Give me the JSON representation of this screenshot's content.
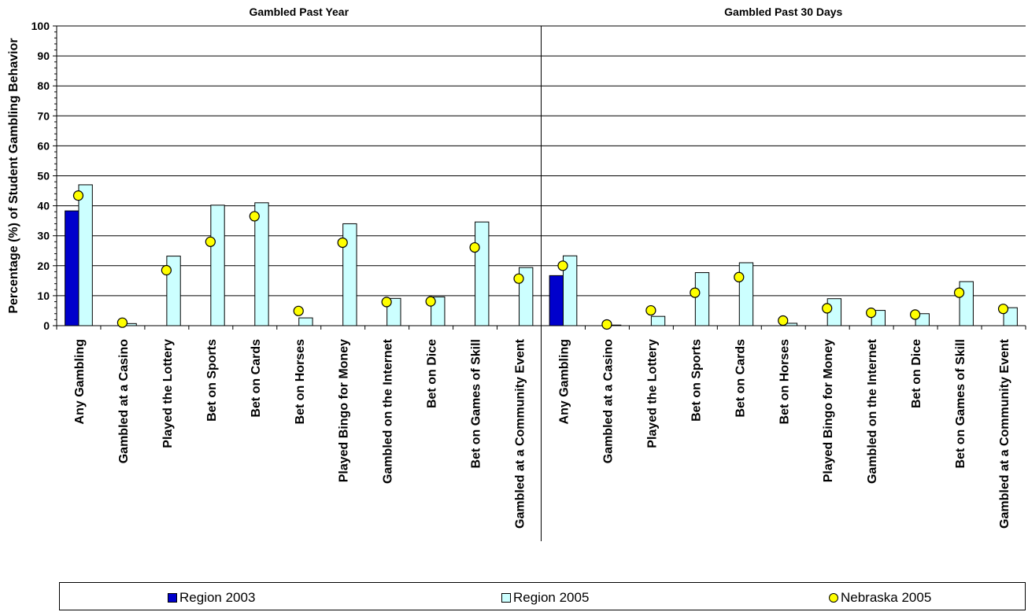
{
  "chart_data": {
    "type": "bar",
    "ylabel": "Percentage (%) of Student Gambling Behavior",
    "ylim": [
      0,
      100
    ],
    "yticks": [
      0,
      10,
      20,
      30,
      40,
      50,
      60,
      70,
      80,
      90,
      100
    ],
    "grid": true,
    "legend_position": "bottom",
    "colors": {
      "region2003": "#0000CC",
      "region2005": "#CCFFFF",
      "nebraska2005": "#FFFF00"
    },
    "categories": [
      "Any Gambling",
      "Gambled at a Casino",
      "Played the Lottery",
      "Bet on Sports",
      "Bet on Cards",
      "Bet on Horses",
      "Played Bingo for Money",
      "Gambled on the Internet",
      "Bet on Dice",
      "Bet on Games of Skill",
      "Gambled at a Community Event"
    ],
    "panels": [
      {
        "title": "Gambled Past Year",
        "series": [
          {
            "name": "Region 2003",
            "kind": "bar",
            "values": [
              38.3,
              null,
              null,
              null,
              null,
              null,
              null,
              null,
              null,
              null,
              null
            ]
          },
          {
            "name": "Region 2005",
            "kind": "bar",
            "values": [
              47.0,
              0.7,
              23.2,
              40.2,
              41.0,
              2.6,
              34.0,
              9.1,
              9.6,
              34.6,
              19.4
            ]
          },
          {
            "name": "Nebraska 2005",
            "kind": "marker",
            "values": [
              43.4,
              1.0,
              18.5,
              28.0,
              36.5,
              4.9,
              27.7,
              7.9,
              8.1,
              26.1,
              15.7
            ]
          }
        ]
      },
      {
        "title": "Gambled Past 30 Days",
        "series": [
          {
            "name": "Region 2003",
            "kind": "bar",
            "values": [
              16.7,
              null,
              null,
              null,
              null,
              null,
              null,
              null,
              null,
              null,
              null
            ]
          },
          {
            "name": "Region 2005",
            "kind": "bar",
            "values": [
              23.3,
              0.2,
              3.1,
              17.7,
              21.0,
              0.8,
              9.0,
              5.1,
              4.0,
              14.7,
              6.0
            ]
          },
          {
            "name": "Nebraska 2005",
            "kind": "marker",
            "values": [
              20.0,
              0.4,
              5.1,
              11.0,
              16.2,
              1.7,
              5.8,
              4.3,
              3.7,
              11.0,
              5.6
            ]
          }
        ]
      }
    ]
  },
  "legend": {
    "region2003": "Region 2003",
    "region2005": "Region 2005",
    "nebraska2005": "Nebraska 2005"
  }
}
